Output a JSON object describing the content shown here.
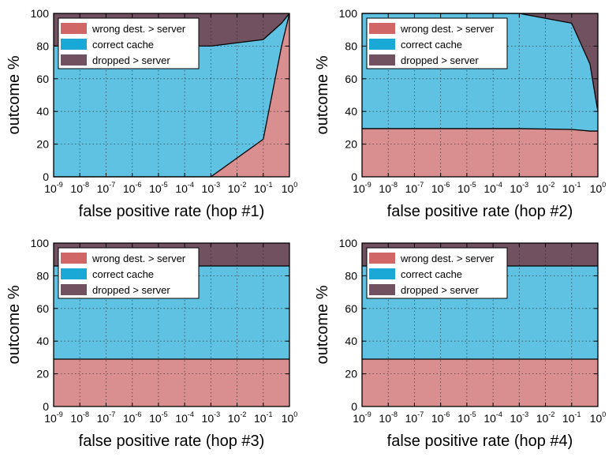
{
  "colors": {
    "wrong_dest": "#d98f8f",
    "correct_cache": "#60c2e2",
    "dropped": "#715060",
    "legend_wrong_dest": "#d06666",
    "legend_correct_cache": "#1aa8d6",
    "legend_dropped": "#715060"
  },
  "chart_data": [
    {
      "type": "area",
      "stacked": true,
      "xscale": "log",
      "xlim": [
        1e-09,
        1
      ],
      "ylim": [
        0,
        100
      ],
      "xlabel": "false positive rate (hop #1)",
      "ylabel": "outcome %",
      "xticks": [
        {
          "base": "10",
          "exp": "-9"
        },
        {
          "base": "10",
          "exp": "-8"
        },
        {
          "base": "10",
          "exp": "-7"
        },
        {
          "base": "10",
          "exp": "-6"
        },
        {
          "base": "10",
          "exp": "-5"
        },
        {
          "base": "10",
          "exp": "-4"
        },
        {
          "base": "10",
          "exp": "-3"
        },
        {
          "base": "10",
          "exp": "-2"
        },
        {
          "base": "10",
          "exp": "-1"
        },
        {
          "base": "10",
          "exp": "0"
        }
      ],
      "yticks": [
        "0",
        "20",
        "40",
        "60",
        "80",
        "100"
      ],
      "grid": true,
      "legend_position": "top-left",
      "x": [
        1e-09,
        0.001,
        0.1,
        0.5,
        1
      ],
      "series": [
        {
          "name": "wrong dest. > server",
          "values": [
            0,
            0,
            23,
            80,
            100
          ]
        },
        {
          "name": "correct cache",
          "values": [
            80,
            80,
            61,
            14,
            0
          ]
        },
        {
          "name": "dropped > server",
          "values": [
            20,
            20,
            16,
            6,
            0
          ]
        }
      ]
    },
    {
      "type": "area",
      "stacked": true,
      "xscale": "log",
      "xlim": [
        1e-09,
        1
      ],
      "ylim": [
        0,
        100
      ],
      "xlabel": "false positive rate (hop #2)",
      "ylabel": "outcome %",
      "xticks": [
        {
          "base": "10",
          "exp": "-9"
        },
        {
          "base": "10",
          "exp": "-8"
        },
        {
          "base": "10",
          "exp": "-7"
        },
        {
          "base": "10",
          "exp": "-6"
        },
        {
          "base": "10",
          "exp": "-5"
        },
        {
          "base": "10",
          "exp": "-4"
        },
        {
          "base": "10",
          "exp": "-3"
        },
        {
          "base": "10",
          "exp": "-2"
        },
        {
          "base": "10",
          "exp": "-1"
        },
        {
          "base": "10",
          "exp": "0"
        }
      ],
      "yticks": [
        "0",
        "20",
        "40",
        "60",
        "80",
        "100"
      ],
      "grid": true,
      "legend_position": "top-left",
      "x": [
        1e-09,
        0.001,
        0.1,
        0.5,
        1
      ],
      "series": [
        {
          "name": "wrong dest. > server",
          "values": [
            29.5,
            29.5,
            29,
            28,
            28
          ]
        },
        {
          "name": "correct cache",
          "values": [
            70.5,
            70.5,
            65,
            41,
            12
          ]
        },
        {
          "name": "dropped > server",
          "values": [
            0,
            0,
            6,
            31,
            60
          ]
        }
      ]
    },
    {
      "type": "area",
      "stacked": true,
      "xscale": "log",
      "xlim": [
        1e-09,
        1
      ],
      "ylim": [
        0,
        100
      ],
      "xlabel": "false positive rate (hop #3)",
      "ylabel": "outcome %",
      "xticks": [
        {
          "base": "10",
          "exp": "-9"
        },
        {
          "base": "10",
          "exp": "-8"
        },
        {
          "base": "10",
          "exp": "-7"
        },
        {
          "base": "10",
          "exp": "-6"
        },
        {
          "base": "10",
          "exp": "-5"
        },
        {
          "base": "10",
          "exp": "-4"
        },
        {
          "base": "10",
          "exp": "-3"
        },
        {
          "base": "10",
          "exp": "-2"
        },
        {
          "base": "10",
          "exp": "-1"
        },
        {
          "base": "10",
          "exp": "0"
        }
      ],
      "yticks": [
        "0",
        "20",
        "40",
        "60",
        "80",
        "100"
      ],
      "grid": true,
      "legend_position": "top-left",
      "x": [
        1e-09,
        1
      ],
      "series": [
        {
          "name": "wrong dest. > server",
          "values": [
            29,
            29
          ]
        },
        {
          "name": "correct cache",
          "values": [
            57,
            57
          ]
        },
        {
          "name": "dropped > server",
          "values": [
            14,
            14
          ]
        }
      ]
    },
    {
      "type": "area",
      "stacked": true,
      "xscale": "log",
      "xlim": [
        1e-09,
        1
      ],
      "ylim": [
        0,
        100
      ],
      "xlabel": "false positive rate (hop #4)",
      "ylabel": "outcome %",
      "xticks": [
        {
          "base": "10",
          "exp": "-9"
        },
        {
          "base": "10",
          "exp": "-8"
        },
        {
          "base": "10",
          "exp": "-7"
        },
        {
          "base": "10",
          "exp": "-6"
        },
        {
          "base": "10",
          "exp": "-5"
        },
        {
          "base": "10",
          "exp": "-4"
        },
        {
          "base": "10",
          "exp": "-3"
        },
        {
          "base": "10",
          "exp": "-2"
        },
        {
          "base": "10",
          "exp": "-1"
        },
        {
          "base": "10",
          "exp": "0"
        }
      ],
      "yticks": [
        "0",
        "20",
        "40",
        "60",
        "80",
        "100"
      ],
      "grid": true,
      "legend_position": "top-left",
      "x": [
        1e-09,
        1
      ],
      "series": [
        {
          "name": "wrong dest. > server",
          "values": [
            29,
            29
          ]
        },
        {
          "name": "correct cache",
          "values": [
            57,
            57
          ]
        },
        {
          "name": "dropped > server",
          "values": [
            14,
            14
          ]
        }
      ]
    }
  ]
}
